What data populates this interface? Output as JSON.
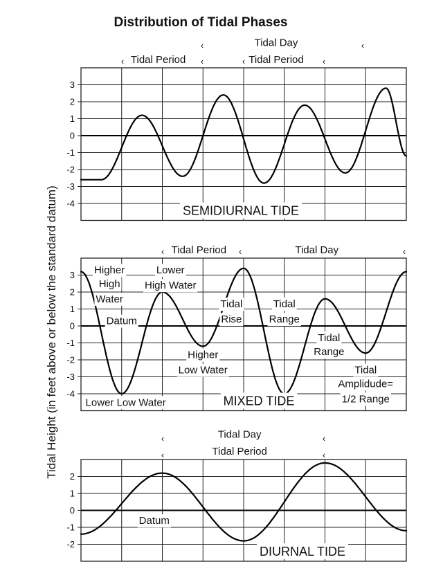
{
  "chart_data": [
    {
      "type": "line",
      "title": "Distribution of Tidal Phases",
      "ylabel": "Tidal Height (in feet above or below the standard datum)",
      "panel_label": "SEMIDIURNAL TIDE",
      "ylim": [
        -5,
        4
      ],
      "yticks": [
        "3",
        "2",
        "1",
        "0",
        "-1",
        "-2",
        "-3",
        "-4"
      ],
      "grid": true,
      "series": [
        {
          "x": [
            0,
            0.5,
            1.5,
            2.5,
            3.5,
            4.5,
            5.5,
            6.5,
            7.5,
            8
          ],
          "values": [
            -2.6,
            -2.6,
            1.2,
            -2.4,
            2.4,
            -2.8,
            1.8,
            -2.2,
            2.8,
            -1.2
          ]
        }
      ],
      "annotations": [
        {
          "text": "Tidal Period",
          "x": 1.9,
          "y": 4.5
        },
        {
          "text": "Tidal Day",
          "x": 4.8,
          "y": 5.5
        },
        {
          "text": "Tidal Period",
          "x": 4.8,
          "y": 4.5
        }
      ]
    },
    {
      "type": "line",
      "panel_label": "MIXED TIDE",
      "ylim": [
        -5,
        4
      ],
      "yticks": [
        "3",
        "2",
        "1",
        "0",
        "-1",
        "-2",
        "-3",
        "-4"
      ],
      "grid": true,
      "series": [
        {
          "x": [
            0,
            1,
            2,
            3,
            4,
            5,
            6,
            7,
            8
          ],
          "values": [
            3.2,
            -4.0,
            2.0,
            -1.2,
            3.4,
            -4.0,
            1.6,
            -1.6,
            3.2
          ]
        }
      ],
      "annotations": [
        {
          "text": "Tidal Period",
          "x": 2.9,
          "y": 4.5
        },
        {
          "text": "Tidal Day",
          "x": 5.8,
          "y": 4.5
        },
        {
          "text": "Higher",
          "x": 0.7,
          "y": 3.3
        },
        {
          "text": "High",
          "x": 0.7,
          "y": 2.5
        },
        {
          "text": "Water",
          "x": 0.7,
          "y": 1.6
        },
        {
          "text": "Lower",
          "x": 2.2,
          "y": 3.3
        },
        {
          "text": "High Water",
          "x": 2.2,
          "y": 2.4
        },
        {
          "text": "Datum",
          "x": 1.0,
          "y": 0.3
        },
        {
          "text": "Tidal",
          "x": 3.7,
          "y": 1.3
        },
        {
          "text": "Rise",
          "x": 3.7,
          "y": 0.4
        },
        {
          "text": "Tidal",
          "x": 5.0,
          "y": 1.3
        },
        {
          "text": "Range",
          "x": 5.0,
          "y": 0.4
        },
        {
          "text": "Higher",
          "x": 3.0,
          "y": -1.7
        },
        {
          "text": "Low Water",
          "x": 3.0,
          "y": -2.6
        },
        {
          "text": "Tidal",
          "x": 6.1,
          "y": -0.7
        },
        {
          "text": "Range",
          "x": 6.1,
          "y": -1.5
        },
        {
          "text": "Tidal",
          "x": 7.0,
          "y": -2.6
        },
        {
          "text": "Amplidude=",
          "x": 7.0,
          "y": -3.4
        },
        {
          "text": "1/2 Range",
          "x": 7.0,
          "y": -4.3
        },
        {
          "text": "Lower Low Water",
          "x": 1.1,
          "y": -4.5
        }
      ]
    },
    {
      "type": "line",
      "panel_label": "DIURNAL TIDE",
      "ylim": [
        -3,
        3
      ],
      "yticks": [
        "2",
        "1",
        "0",
        "-1",
        "-2"
      ],
      "grid": true,
      "series": [
        {
          "x": [
            0,
            2,
            4,
            6,
            8
          ],
          "values": [
            -1.4,
            2.2,
            -1.8,
            2.8,
            -1.2
          ]
        }
      ],
      "annotations": [
        {
          "text": "Tidal Day",
          "x": 3.9,
          "y": 4.5
        },
        {
          "text": "Tidal Period",
          "x": 3.9,
          "y": 3.5
        },
        {
          "text": "Datum",
          "x": 1.8,
          "y": -0.6
        }
      ]
    }
  ]
}
